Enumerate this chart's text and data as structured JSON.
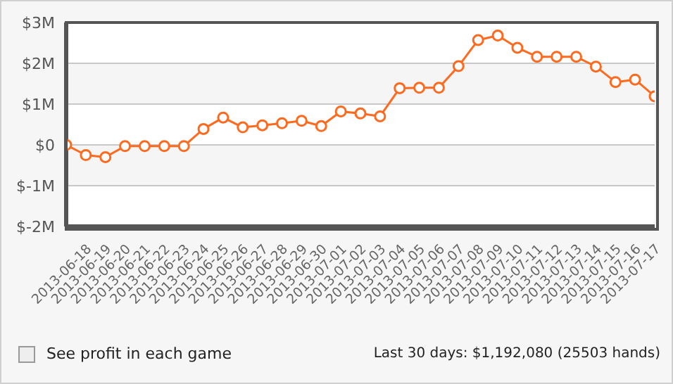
{
  "chart_data": {
    "type": "line",
    "categories": [
      null,
      "2013-06-18",
      "2013-06-19",
      "2013-06-20",
      "2013-06-21",
      "2013-06-22",
      "2013-06-23",
      "2013-06-24",
      "2013-06-25",
      "2013-06-26",
      "2013-06-27",
      "2013-06-28",
      "2013-06-29",
      "2013-06-30",
      "2013-07-01",
      "2013-07-02",
      "2013-07-03",
      "2013-07-04",
      "2013-07-05",
      "2013-07-06",
      "2013-07-07",
      "2013-07-08",
      "2013-07-09",
      "2013-07-10",
      "2013-07-11",
      "2013-07-12",
      "2013-07-13",
      "2013-07-14",
      "2013-07-15",
      "2013-07-16",
      "2013-07-17"
    ],
    "series": [
      {
        "color": "#ff6a1f",
        "values": [
          0,
          -250000,
          -300000,
          -30000,
          -30000,
          -30000,
          -30000,
          390000,
          670000,
          430000,
          480000,
          530000,
          590000,
          460000,
          820000,
          770000,
          700000,
          1390000,
          1400000,
          1400000,
          1930000,
          2570000,
          2680000,
          2380000,
          2160000,
          2160000,
          2160000,
          1920000,
          1540000,
          1600000,
          1190000
        ]
      }
    ],
    "ylim": [
      -2000000,
      3000000
    ],
    "yticks": [
      {
        "value": -2000000,
        "label": "$-2M"
      },
      {
        "value": -1000000,
        "label": "$-1M"
      },
      {
        "value": 0,
        "label": "$0"
      },
      {
        "value": 1000000,
        "label": "$1M"
      },
      {
        "value": 2000000,
        "label": "$2M"
      },
      {
        "value": 3000000,
        "label": "$3M"
      }
    ],
    "grid": "y",
    "marker": "circle",
    "line_style": "solid",
    "legend": false,
    "annotations": [
      "See profit in each game",
      "Last 30 days: $1,192,080 (25503 hands)"
    ]
  }
}
